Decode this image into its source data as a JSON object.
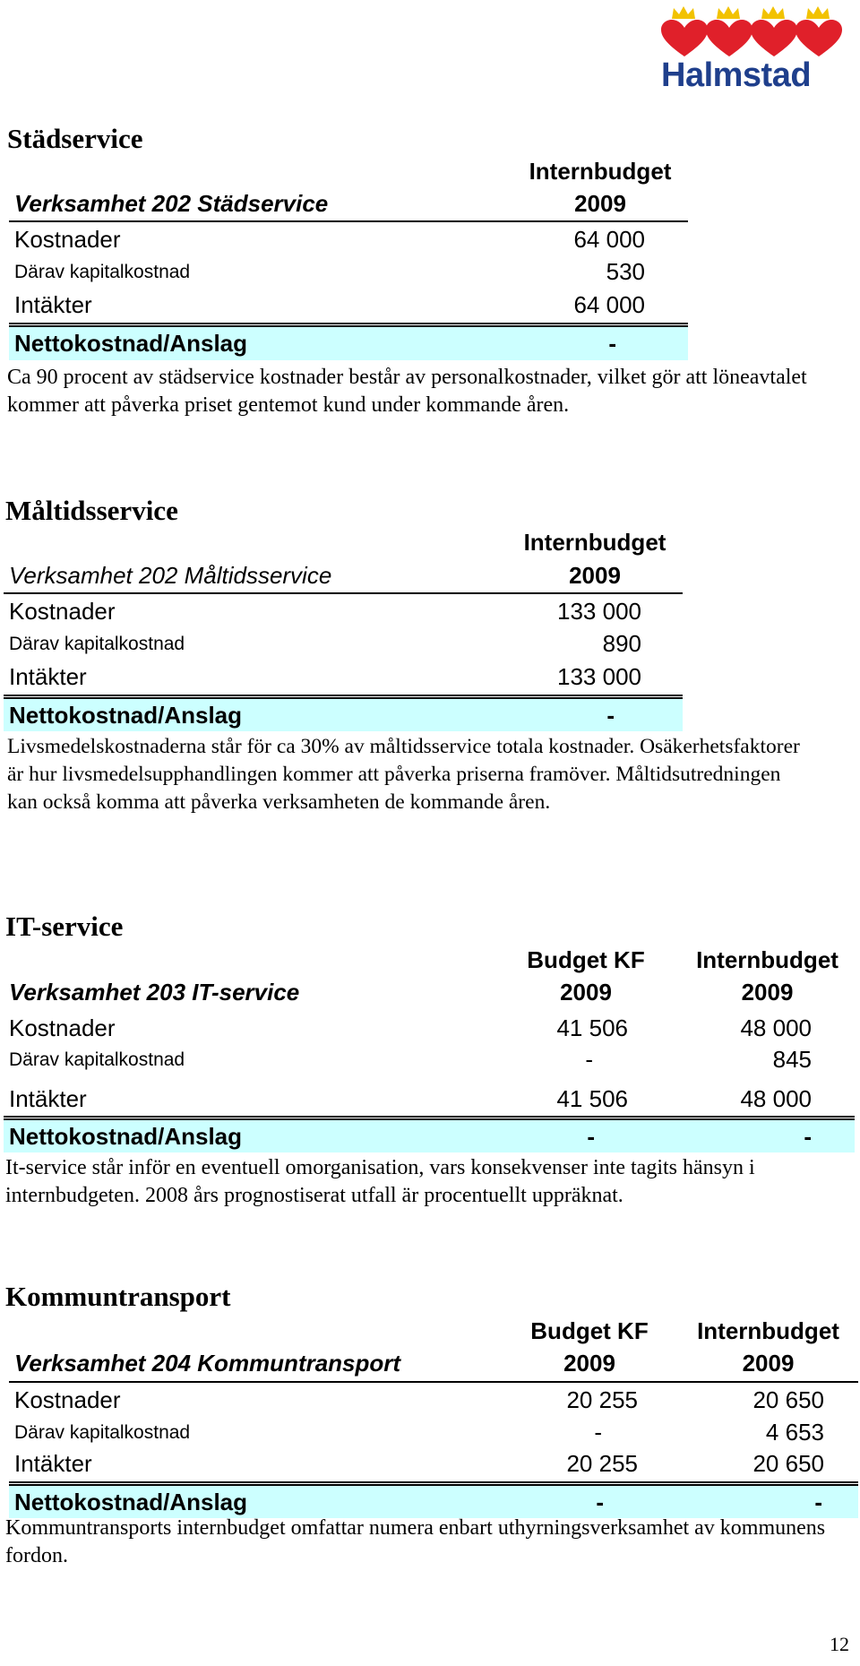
{
  "logo": {
    "name": "Halmstad",
    "colors": {
      "hearts": "#e0202a",
      "crowns": "#f2c200",
      "text": "#1f3f8c"
    }
  },
  "sections": [
    {
      "title": "Städservice",
      "table": {
        "label_header": "Verksamhet 202 Städservice",
        "columns": [
          {
            "line1": "Internbudget",
            "line2": "2009"
          }
        ],
        "rows": [
          {
            "label": "Kostnader",
            "values": [
              "64 000"
            ]
          },
          {
            "label": "Därav kapitalkostnad",
            "values": [
              "530"
            ]
          },
          {
            "label": "Intäkter",
            "values": [
              "64 000"
            ]
          }
        ],
        "net": {
          "label": "Nettokostnad/Anslag",
          "values": [
            "-"
          ]
        }
      },
      "paragraph": "Ca 90 procent av städservice kostnader består av personalkostnader, vilket gör att löneavtalet kommer att påverka priset gentemot kund under kommande åren."
    },
    {
      "title": "Måltidsservice",
      "table": {
        "label_header": "Verksamhet 202 Måltidsservice",
        "columns": [
          {
            "line1": "Internbudget",
            "line2": "2009"
          }
        ],
        "rows": [
          {
            "label": "Kostnader",
            "values": [
              "133 000"
            ]
          },
          {
            "label": "Därav kapitalkostnad",
            "values": [
              "890"
            ]
          },
          {
            "label": "Intäkter",
            "values": [
              "133 000"
            ]
          }
        ],
        "net": {
          "label": "Nettokostnad/Anslag",
          "values": [
            "-"
          ]
        }
      },
      "paragraph": "Livsmedelskostnaderna står för ca 30% av måltidsservice totala kostnader. Osäkerhetsfaktorer är hur livsmedelsupphandlingen kommer att påverka priserna framöver. Måltidsutredningen kan också komma att påverka verksamheten de kommande åren."
    },
    {
      "title": "IT-service",
      "table": {
        "label_header": "Verksamhet 203 IT-service",
        "columns": [
          {
            "line1": "Budget KF",
            "line2": "2009"
          },
          {
            "line1": "Internbudget",
            "line2": "2009"
          }
        ],
        "rows": [
          {
            "label": "Kostnader",
            "values": [
              "41 506",
              "48 000"
            ]
          },
          {
            "label": "Därav kapitalkostnad",
            "values": [
              "-",
              "845"
            ]
          },
          {
            "label": "Intäkter",
            "values": [
              "41 506",
              "48 000"
            ]
          }
        ],
        "net": {
          "label": "Nettokostnad/Anslag",
          "values": [
            "-",
            "-"
          ]
        }
      },
      "paragraph": "It-service står inför en eventuell omorganisation, vars konsekvenser inte tagits hänsyn i internbudgeten. 2008 års prognostiserat utfall är procentuellt uppräknat."
    },
    {
      "title": "Kommuntransport",
      "table": {
        "label_header": "Verksamhet 204  Kommuntransport",
        "columns": [
          {
            "line1": "Budget KF",
            "line2": "2009"
          },
          {
            "line1": "Internbudget",
            "line2": "2009"
          }
        ],
        "rows": [
          {
            "label": "Kostnader",
            "values": [
              "20 255",
              "20 650"
            ]
          },
          {
            "label": "Därav kapitalkostnad",
            "values": [
              "-",
              "4 653"
            ]
          },
          {
            "label": "Intäkter",
            "values": [
              "20 255",
              "20 650"
            ]
          }
        ],
        "net": {
          "label": "Nettokostnad/Anslag",
          "values": [
            "-",
            "-"
          ]
        }
      },
      "paragraph": "Kommuntransports internbudget omfattar numera enbart uthyrningsverksamhet av kommunens fordon."
    }
  ],
  "page_number": "12"
}
